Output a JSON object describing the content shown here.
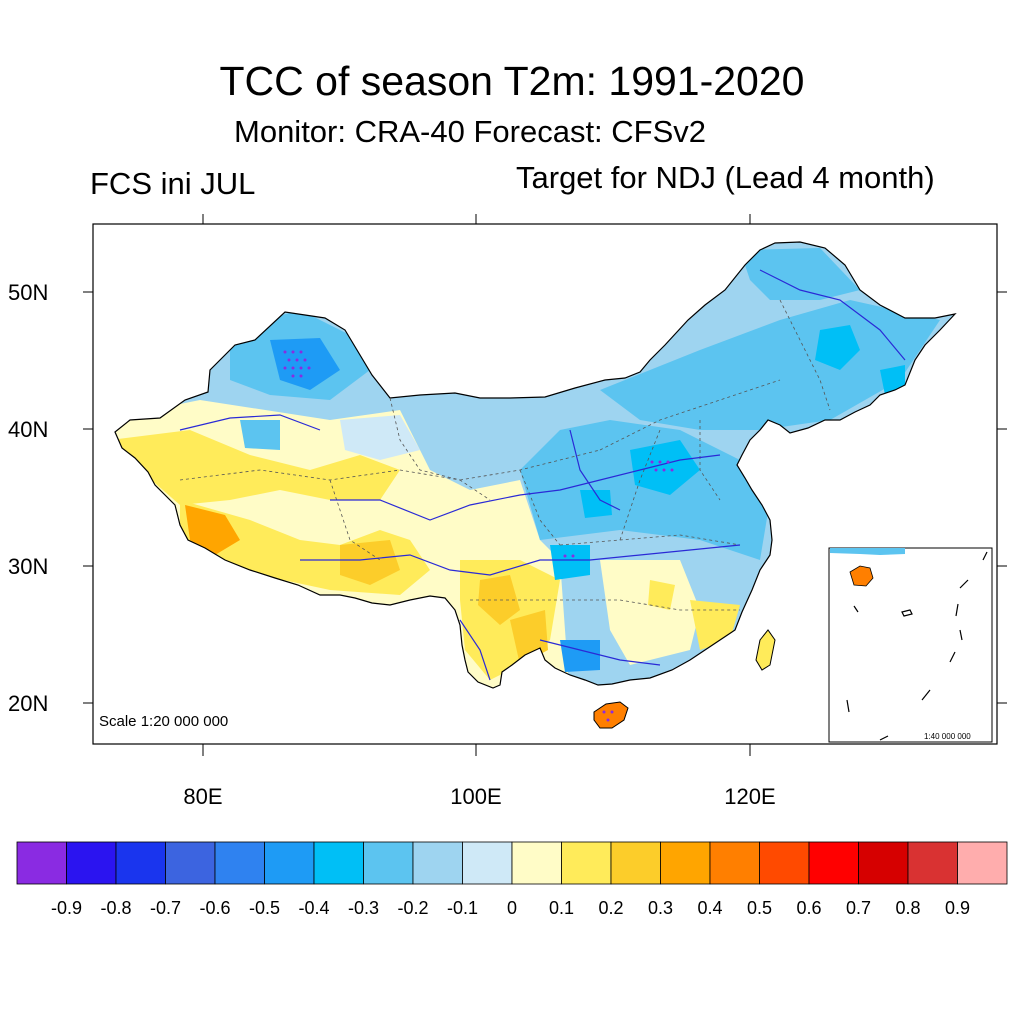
{
  "title": "TCC of season T2m: 1991-2020",
  "subtitle": "Monitor: CRA-40   Forecast: CFSv2",
  "left_label": "FCS ini JUL",
  "right_label": "Target for NDJ (Lead 4 month)",
  "scale_main": "Scale 1:20 000 000",
  "scale_inset": "1:40 000 000",
  "axes": {
    "lat_ticks": [
      "50N",
      "40N",
      "30N",
      "20N"
    ],
    "lon_ticks": [
      "80E",
      "100E",
      "120E"
    ]
  },
  "colorbar": {
    "labels": [
      "-0.9",
      "-0.8",
      "-0.7",
      "-0.6",
      "-0.5",
      "-0.4",
      "-0.3",
      "-0.2",
      "-0.1",
      "0",
      "0.1",
      "0.2",
      "0.3",
      "0.4",
      "0.5",
      "0.6",
      "0.7",
      "0.8",
      "0.9"
    ],
    "colors": [
      "#8a2be2",
      "#2b14f0",
      "#1a35ee",
      "#3c64e0",
      "#2f82f0",
      "#1e9bf5",
      "#00bff6",
      "#5cc4f0",
      "#9ed4f0",
      "#cfe9f7",
      "#fffcc7",
      "#ffeb5a",
      "#fccd2a",
      "#ffa500",
      "#ff7f00",
      "#ff4a00",
      "#ff0000",
      "#d60000",
      "#d93232",
      "#ffadad"
    ]
  }
}
